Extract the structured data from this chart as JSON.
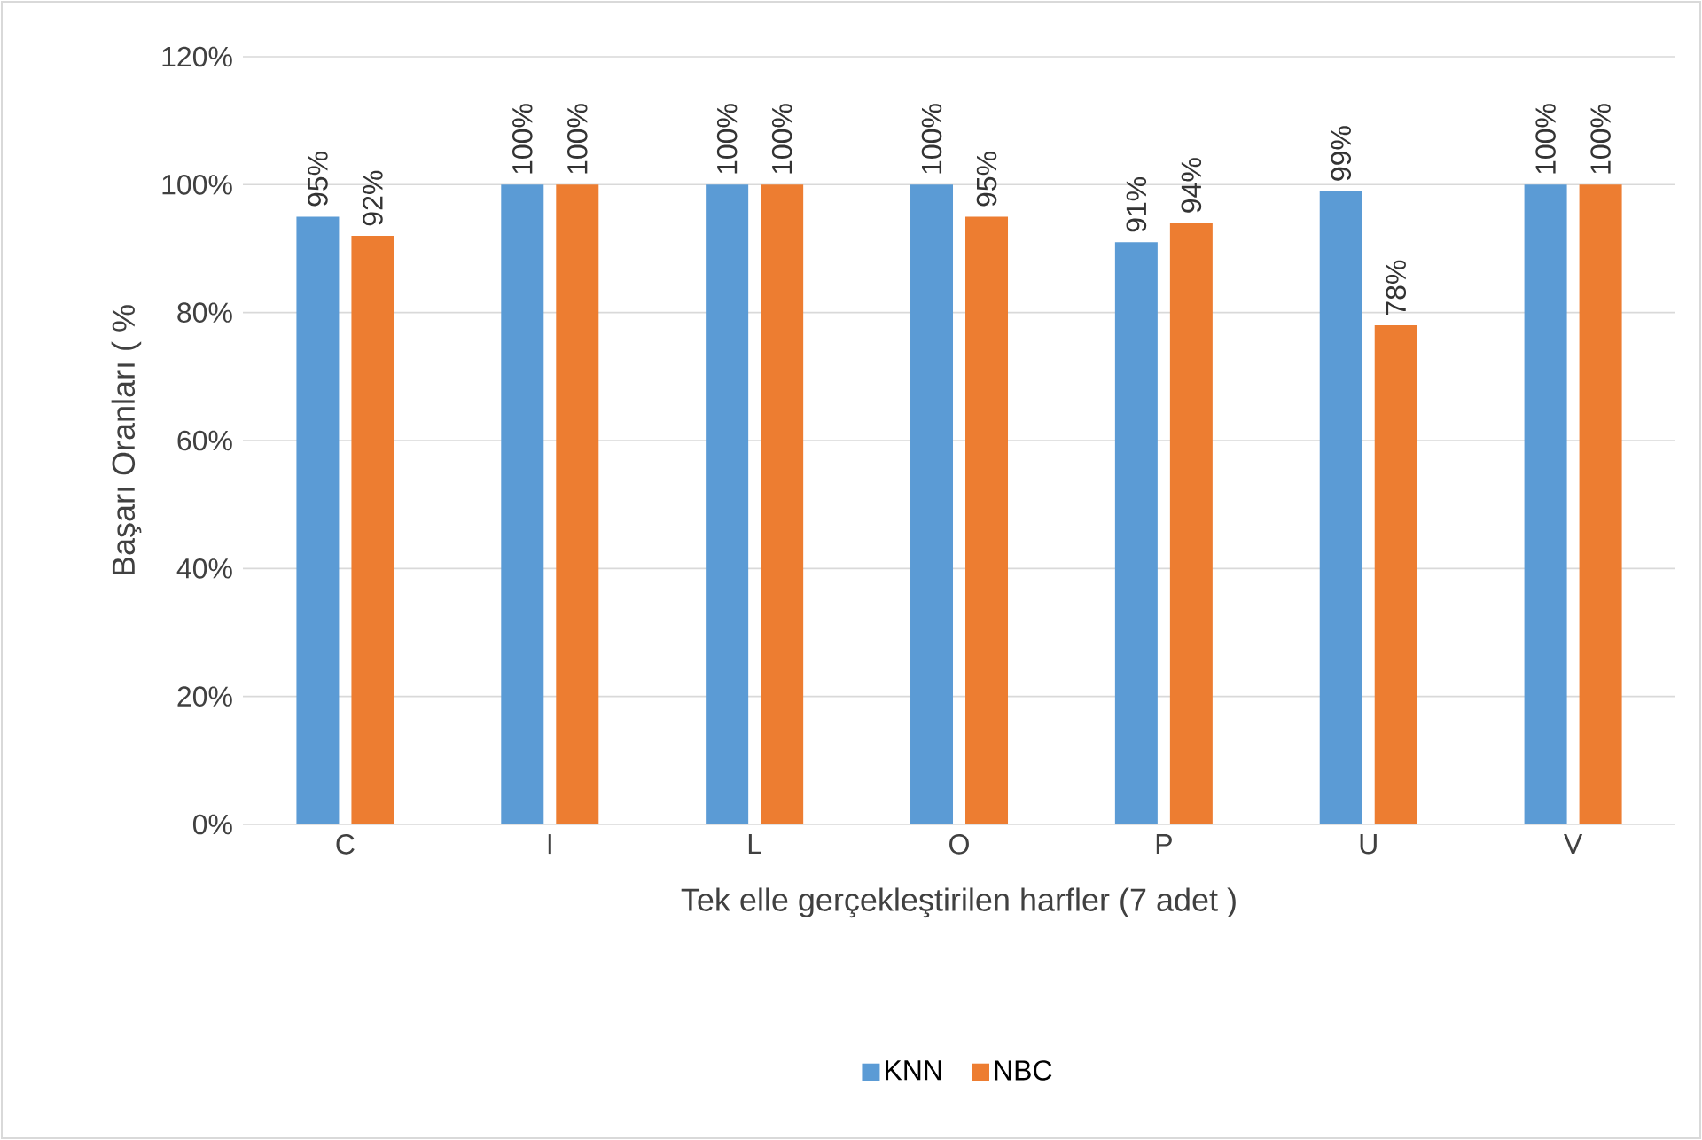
{
  "chart_data": {
    "type": "bar",
    "xlabel": "Tek elle gerçekleştirilen harfler (7 adet )",
    "ylabel": "Başarı Oranları ( %",
    "categories": [
      "C",
      "I",
      "L",
      "O",
      "P",
      "U",
      "V"
    ],
    "series": [
      {
        "name": "KNN",
        "color": "#5b9bd5",
        "values": [
          95,
          100,
          100,
          100,
          91,
          99,
          100
        ],
        "value_labels": [
          "95%",
          "100%",
          "100%",
          "100%",
          "91%",
          "99%",
          "100%"
        ]
      },
      {
        "name": "NBC",
        "color": "#ed7d31",
        "values": [
          92,
          100,
          100,
          95,
          94,
          78,
          100
        ],
        "value_labels": [
          "92%",
          "100%",
          "100%",
          "95%",
          "94%",
          "78%",
          "100%"
        ]
      }
    ],
    "ylim": [
      0,
      120
    ],
    "yticks": [
      {
        "value": 0,
        "label": "0%"
      },
      {
        "value": 20,
        "label": "20%"
      },
      {
        "value": 40,
        "label": "40%"
      },
      {
        "value": 60,
        "label": "60%"
      },
      {
        "value": 80,
        "label": "80%"
      },
      {
        "value": 100,
        "label": "100%"
      },
      {
        "value": 120,
        "label": "120%"
      }
    ],
    "grid": "y",
    "legend": "bottom"
  }
}
